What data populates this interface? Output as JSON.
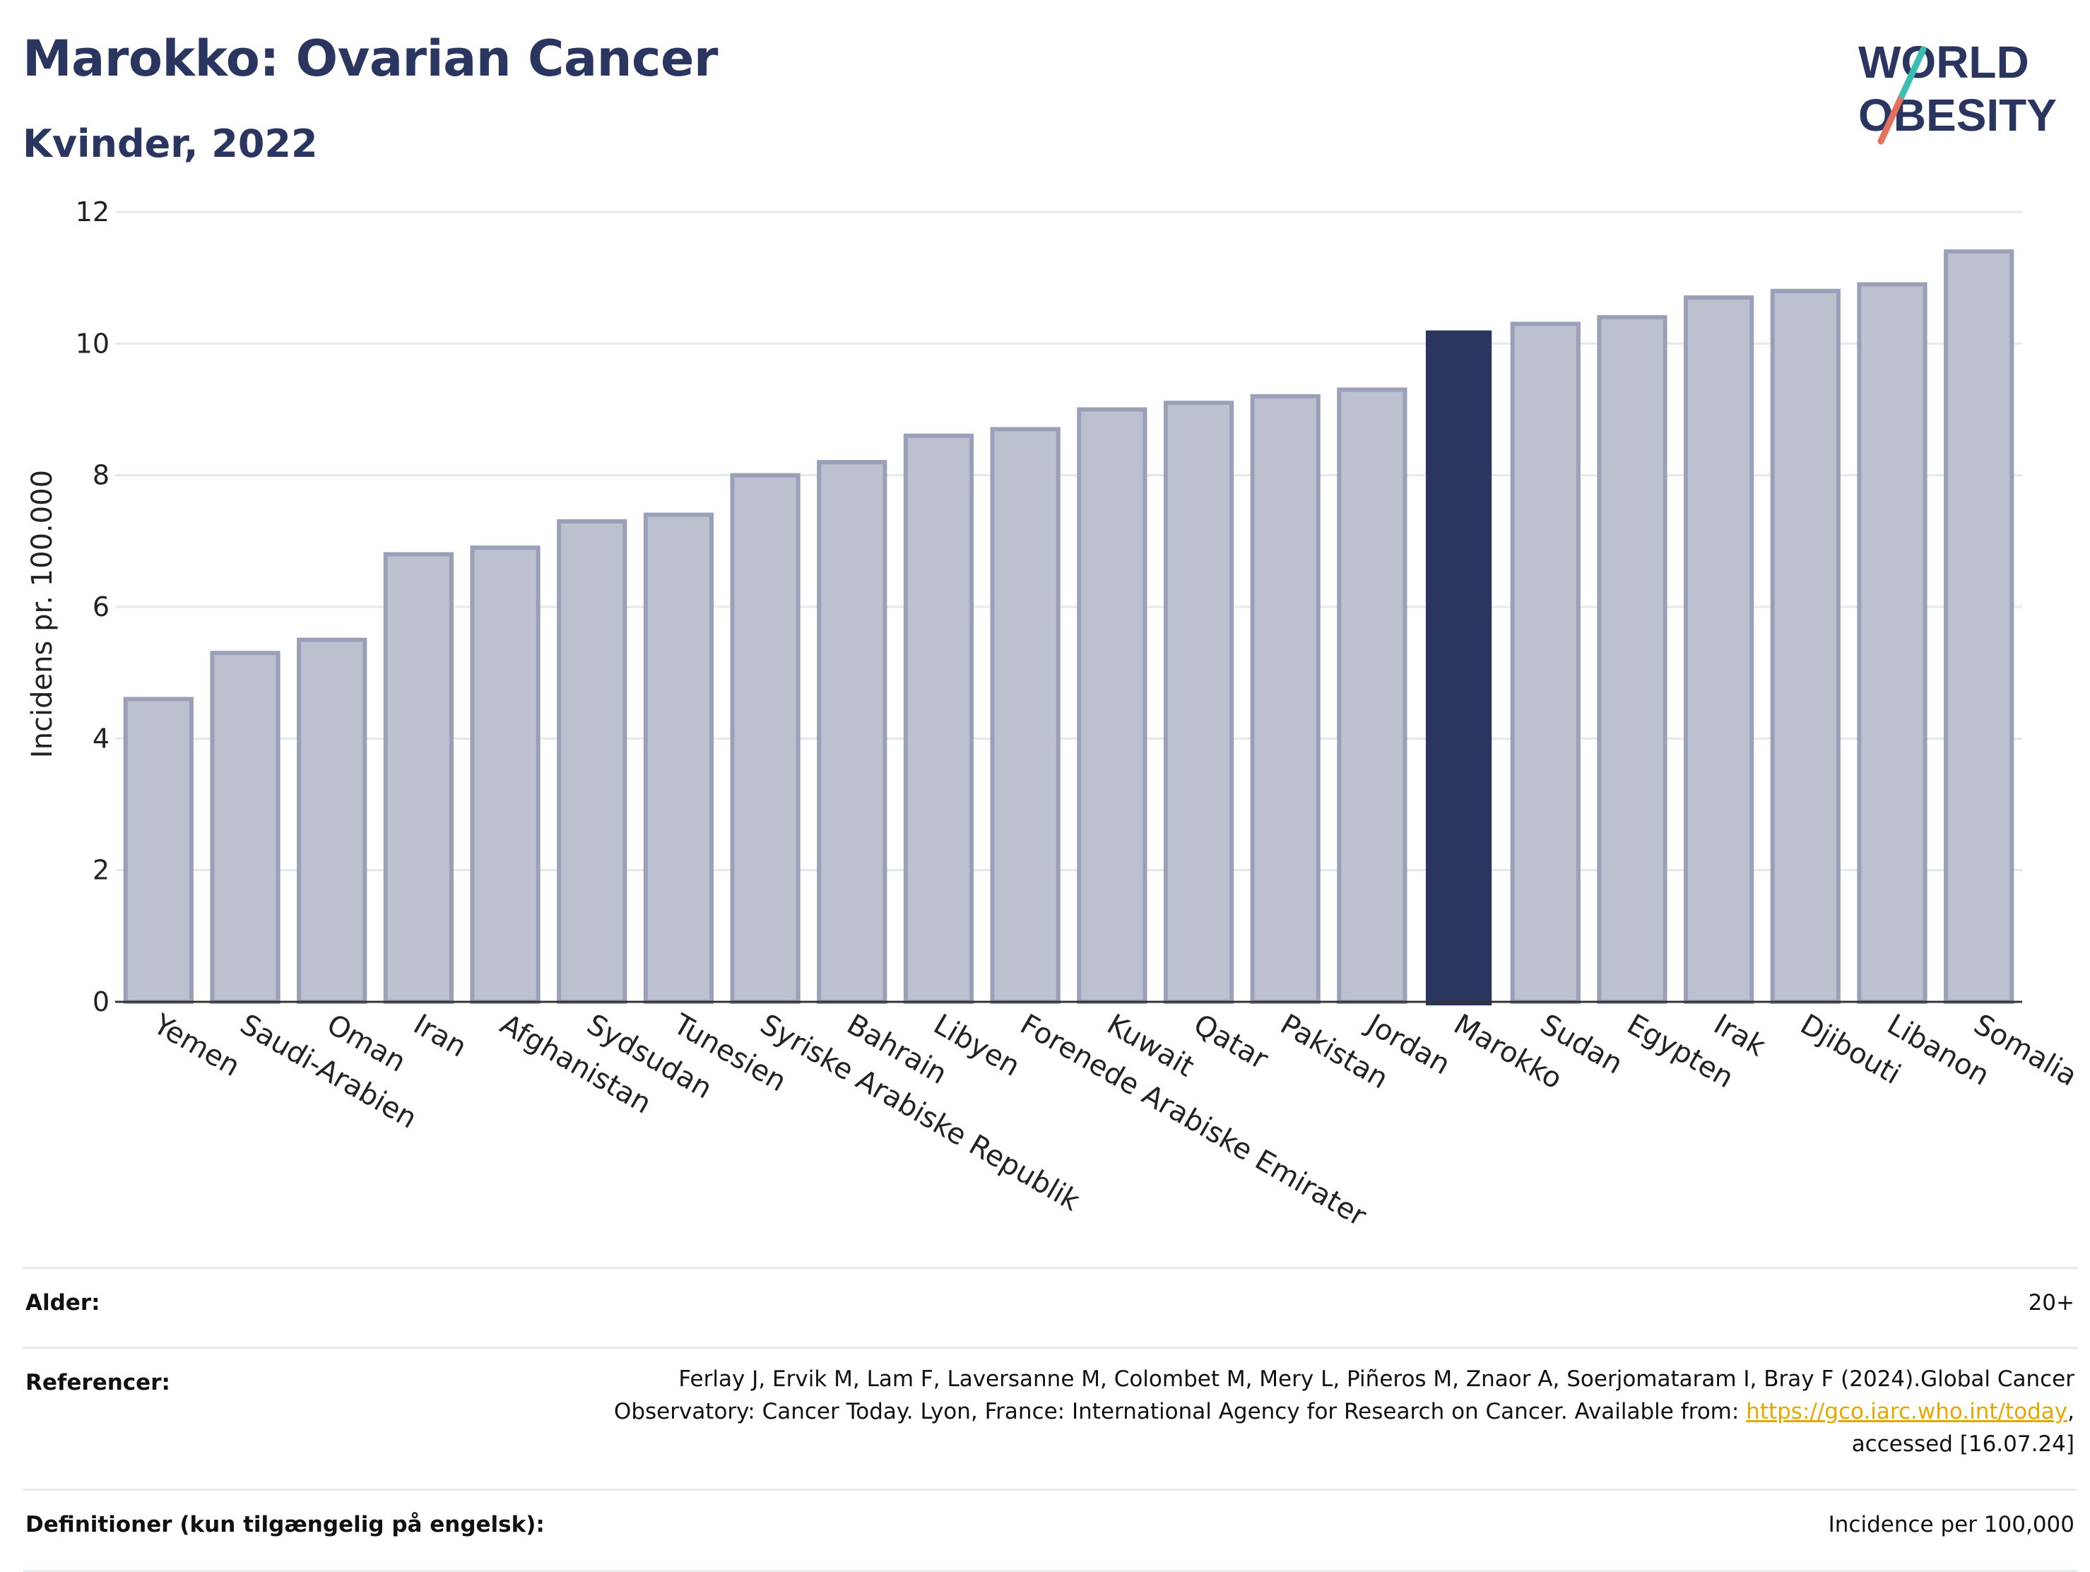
{
  "title": "Marokko: Ovarian Cancer",
  "subtitle": "Kvinder, 2022",
  "logo": {
    "line1": "WORLD",
    "line2": "OBESITY"
  },
  "chart_data": {
    "type": "bar",
    "ylabel": "Incidens pr. 100.000",
    "xlabel": "",
    "ylim": [
      0,
      12
    ],
    "yticks": [
      0,
      2,
      4,
      6,
      8,
      10,
      12
    ],
    "grid": true,
    "highlight": "Marokko",
    "colors": {
      "bar": "#bcc0cf",
      "bar_edge": "#9aa0b8",
      "highlight": "#2a3560"
    },
    "categories": [
      "Yemen",
      "Saudi-Arabien",
      "Oman",
      "Iran",
      "Afghanistan",
      "Sydsudan",
      "Tunesien",
      "Syriske Arabiske Republik",
      "Bahrain",
      "Libyen",
      "Forenede Arabiske Emirater",
      "Kuwait",
      "Qatar",
      "Pakistan",
      "Jordan",
      "Marokko",
      "Sudan",
      "Egypten",
      "Irak",
      "Djibouti",
      "Libanon",
      "Somalia"
    ],
    "values": [
      4.6,
      5.3,
      5.5,
      6.8,
      6.9,
      7.3,
      7.4,
      8.0,
      8.2,
      8.6,
      8.7,
      9.0,
      9.1,
      9.2,
      9.3,
      10.2,
      10.3,
      10.4,
      10.7,
      10.8,
      10.9,
      11.4
    ]
  },
  "meta": {
    "age_label": "Alder:",
    "age_value": "20+",
    "ref_label": "Referencer:",
    "ref_line1": "Ferlay J, Ervik M, Lam F, Laversanne M, Colombet M, Mery L, Piñeros M, Znaor A, Soerjomataram I, Bray F (2024).Global Cancer",
    "ref_line2_pre": "Observatory: Cancer Today. Lyon, France: International Agency for Research on Cancer. Available from: ",
    "ref_link": "https://gco.iarc.who.int/today",
    "ref_line2_post": ",",
    "ref_line3": "accessed [16.07.24]",
    "def_label": "Definitioner (kun tilgængelig på engelsk):",
    "def_value": "Incidence per 100,000"
  }
}
